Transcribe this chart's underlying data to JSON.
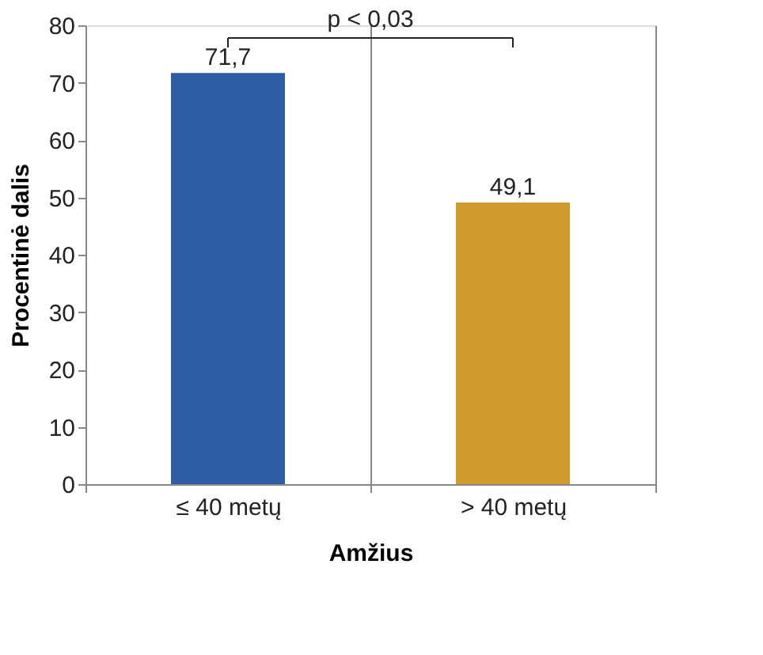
{
  "chart_data": {
    "type": "bar",
    "xlabel": "Amžius",
    "ylabel": "Procentinė dalis",
    "categories": [
      "≤ 40 metų",
      "> 40 metų"
    ],
    "values": [
      71.7,
      49.1
    ],
    "colors": [
      "#2e5da6",
      "#d09a2c"
    ],
    "value_labels": [
      "71,7",
      "49,1"
    ],
    "ylim": [
      0,
      80
    ],
    "yticks": [
      0,
      10,
      20,
      30,
      40,
      50,
      60,
      70,
      80
    ],
    "grid": "x",
    "annotations": [
      "p < 0,03"
    ]
  }
}
